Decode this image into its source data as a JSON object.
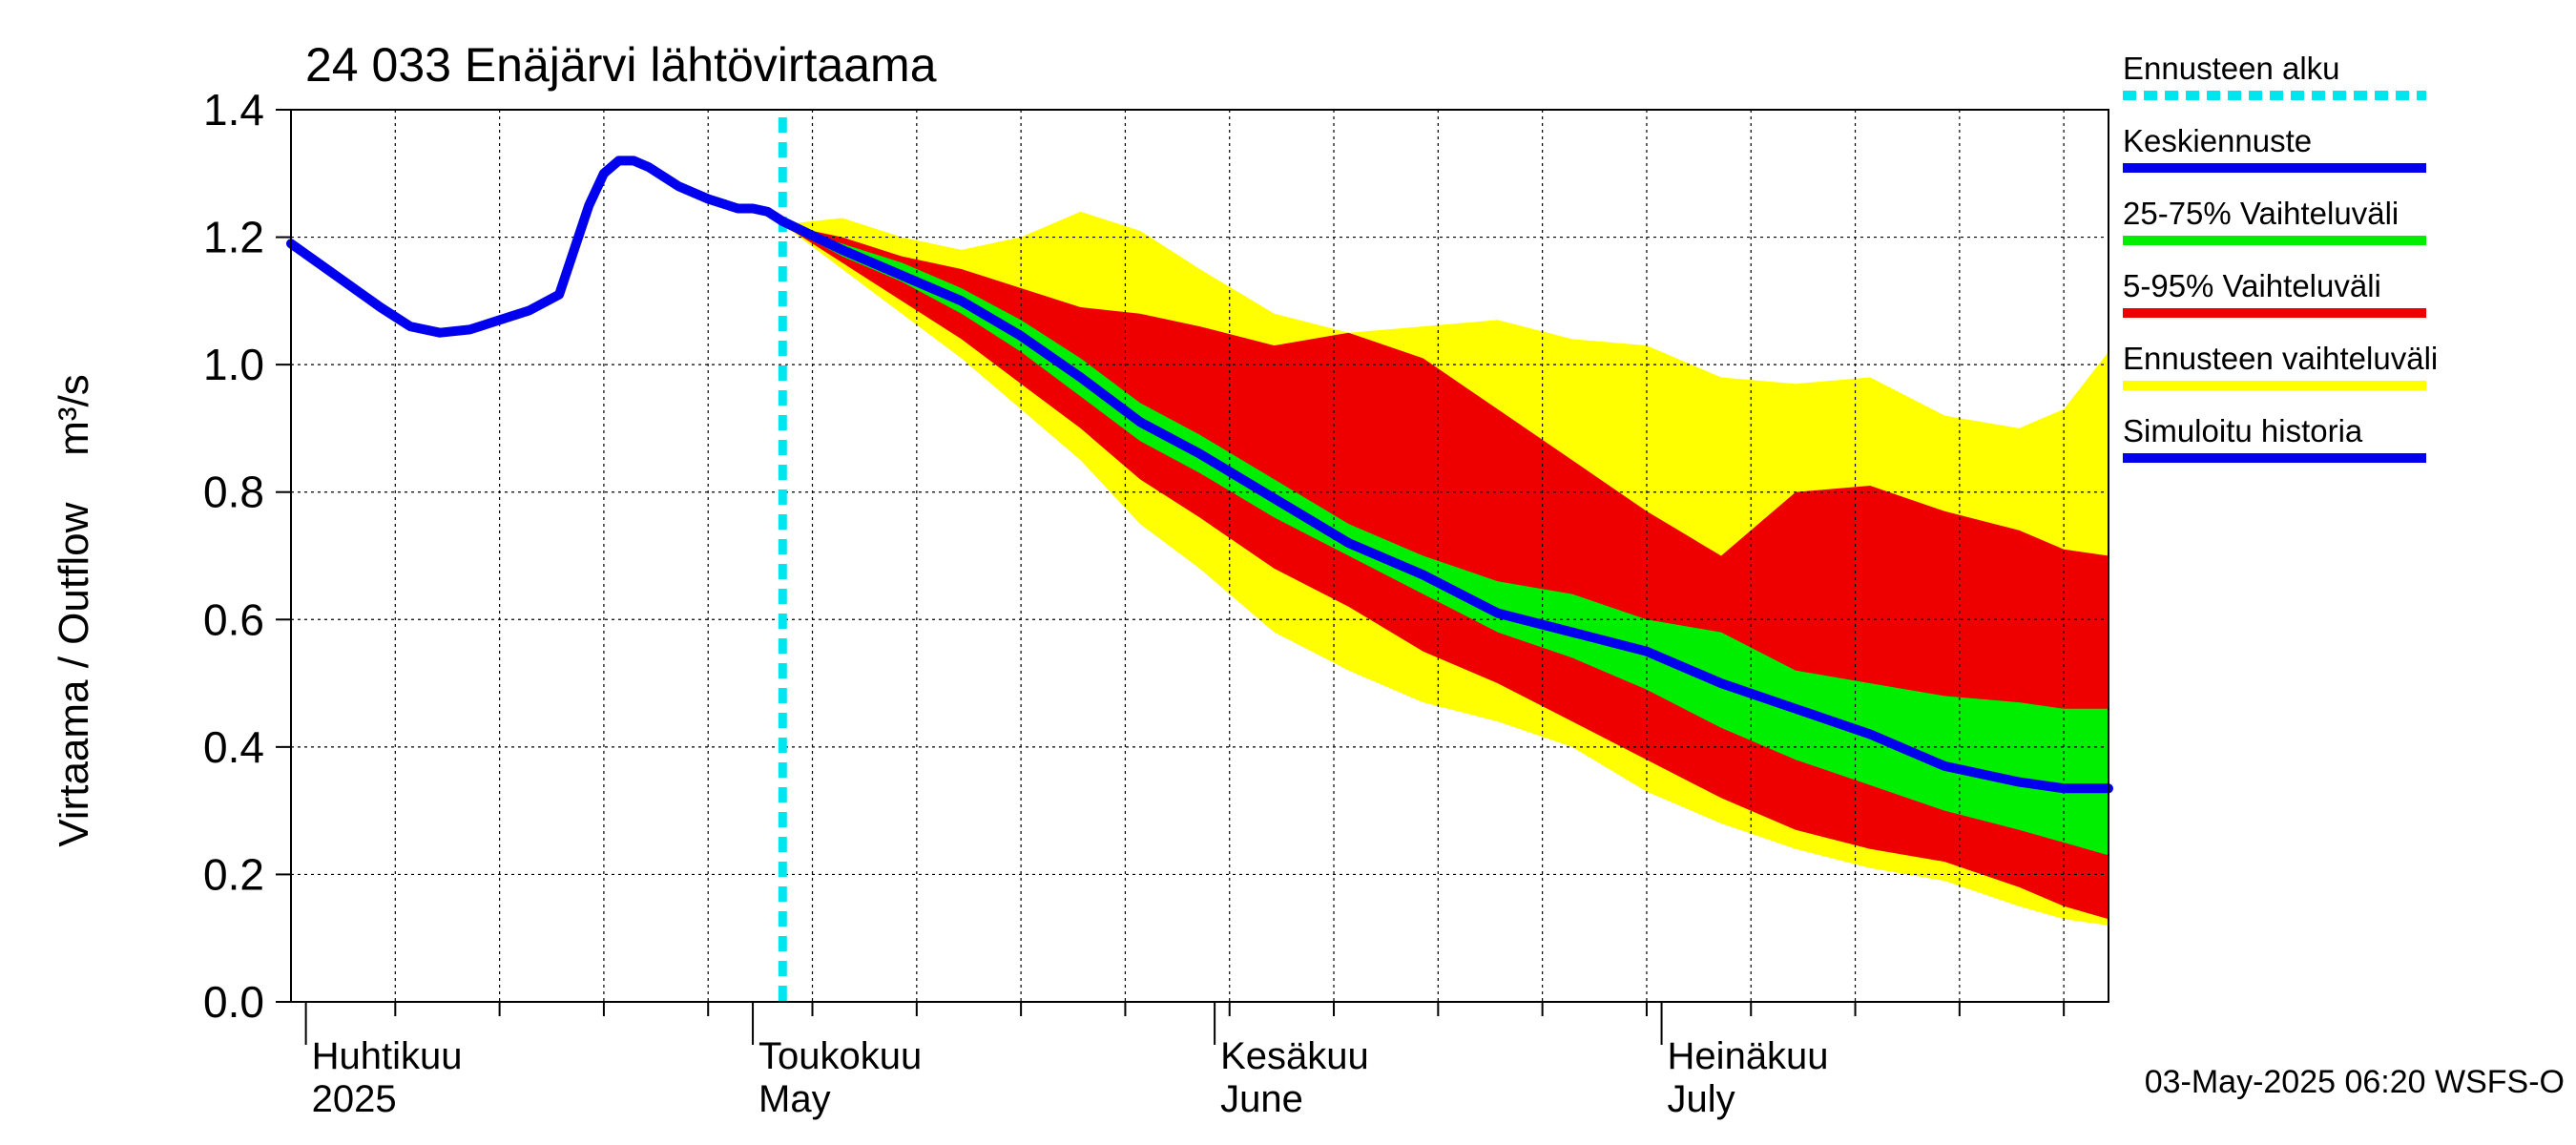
{
  "chart_data": {
    "type": "area",
    "title": "24 033 Enäjärvi lähtövirtaama",
    "ylabel": "Virtaama / Outflow    m³/s",
    "ylim": [
      0,
      1.4
    ],
    "xlim": [
      "2025-03-31",
      "2025-07-31"
    ],
    "yticks": [
      "0.0",
      "0.2",
      "0.4",
      "0.6",
      "0.8",
      "1.0",
      "1.2",
      "1.4"
    ],
    "month_labels": [
      {
        "date": "2025-04-01",
        "fi": "Huhtikuu",
        "en": "2025"
      },
      {
        "date": "2025-05-01",
        "fi": "Toukokuu",
        "en": "May"
      },
      {
        "date": "2025-06-01",
        "fi": "Kesäkuu",
        "en": "June"
      },
      {
        "date": "2025-07-01",
        "fi": "Heinäkuu",
        "en": "July"
      }
    ],
    "forecast_start": "2025-05-03",
    "footer": "03-May-2025 06:20 WSFS-O",
    "legend": [
      {
        "label": "Ennusteen alku",
        "color": "#00e5ee",
        "style": "dashed"
      },
      {
        "label": "Keskiennuste",
        "color": "#0000ee",
        "style": "solid"
      },
      {
        "label": "25-75% Vaihteluväli",
        "color": "#00ee00",
        "style": "solid"
      },
      {
        "label": "5-95% Vaihteluväli",
        "color": "#ee0000",
        "style": "solid"
      },
      {
        "label": "Ennusteen vaihteluväli",
        "color": "#ffff00",
        "style": "solid"
      },
      {
        "label": "Simuloitu historia",
        "color": "#0000ee",
        "style": "solid"
      }
    ],
    "history": {
      "x": [
        "2025-03-31",
        "2025-04-03",
        "2025-04-06",
        "2025-04-08",
        "2025-04-10",
        "2025-04-12",
        "2025-04-14",
        "2025-04-16",
        "2025-04-18",
        "2025-04-19",
        "2025-04-20",
        "2025-04-21",
        "2025-04-22",
        "2025-04-23",
        "2025-04-24",
        "2025-04-25",
        "2025-04-26",
        "2025-04-28",
        "2025-04-30",
        "2025-05-01",
        "2025-05-02",
        "2025-05-03"
      ],
      "y": [
        1.19,
        1.14,
        1.09,
        1.06,
        1.05,
        1.055,
        1.07,
        1.085,
        1.11,
        1.18,
        1.25,
        1.3,
        1.32,
        1.32,
        1.31,
        1.295,
        1.28,
        1.26,
        1.245,
        1.245,
        1.24,
        1.225
      ]
    },
    "series": [
      {
        "name": "Ennusteen vaihteluväli",
        "color": "#ffff00",
        "x": [
          "2025-05-03",
          "2025-05-07",
          "2025-05-11",
          "2025-05-15",
          "2025-05-19",
          "2025-05-23",
          "2025-05-27",
          "2025-05-31",
          "2025-06-05",
          "2025-06-10",
          "2025-06-15",
          "2025-06-20",
          "2025-06-25",
          "2025-06-30",
          "2025-07-05",
          "2025-07-10",
          "2025-07-15",
          "2025-07-20",
          "2025-07-25",
          "2025-07-28",
          "2025-07-31"
        ],
        "upper": [
          1.22,
          1.23,
          1.2,
          1.18,
          1.2,
          1.24,
          1.21,
          1.15,
          1.08,
          1.05,
          1.06,
          1.07,
          1.04,
          1.03,
          0.98,
          0.97,
          0.98,
          0.92,
          0.9,
          0.93,
          1.02
        ],
        "lower": [
          1.22,
          1.15,
          1.08,
          1.01,
          0.93,
          0.85,
          0.75,
          0.68,
          0.58,
          0.52,
          0.47,
          0.44,
          0.4,
          0.33,
          0.28,
          0.24,
          0.21,
          0.19,
          0.15,
          0.13,
          0.12
        ]
      },
      {
        "name": "5-95% Vaihteluväli",
        "color": "#ee0000",
        "x": [
          "2025-05-03",
          "2025-05-07",
          "2025-05-11",
          "2025-05-15",
          "2025-05-19",
          "2025-05-23",
          "2025-05-27",
          "2025-05-31",
          "2025-06-05",
          "2025-06-10",
          "2025-06-15",
          "2025-06-20",
          "2025-06-25",
          "2025-06-30",
          "2025-07-05",
          "2025-07-10",
          "2025-07-15",
          "2025-07-20",
          "2025-07-25",
          "2025-07-28",
          "2025-07-31"
        ],
        "upper": [
          1.22,
          1.2,
          1.17,
          1.15,
          1.12,
          1.09,
          1.08,
          1.06,
          1.03,
          1.05,
          1.01,
          0.93,
          0.85,
          0.77,
          0.7,
          0.8,
          0.81,
          0.77,
          0.74,
          0.71,
          0.7
        ],
        "lower": [
          1.22,
          1.16,
          1.1,
          1.04,
          0.97,
          0.9,
          0.82,
          0.76,
          0.68,
          0.62,
          0.55,
          0.5,
          0.44,
          0.38,
          0.32,
          0.27,
          0.24,
          0.22,
          0.18,
          0.15,
          0.13
        ]
      },
      {
        "name": "25-75% Vaihteluväli",
        "color": "#00ee00",
        "x": [
          "2025-05-03",
          "2025-05-07",
          "2025-05-11",
          "2025-05-15",
          "2025-05-19",
          "2025-05-23",
          "2025-05-27",
          "2025-05-31",
          "2025-06-05",
          "2025-06-10",
          "2025-06-15",
          "2025-06-20",
          "2025-06-25",
          "2025-06-30",
          "2025-07-05",
          "2025-07-10",
          "2025-07-15",
          "2025-07-20",
          "2025-07-25",
          "2025-07-28",
          "2025-07-31"
        ],
        "upper": [
          1.22,
          1.19,
          1.16,
          1.12,
          1.07,
          1.01,
          0.94,
          0.89,
          0.82,
          0.75,
          0.7,
          0.66,
          0.64,
          0.6,
          0.58,
          0.52,
          0.5,
          0.48,
          0.47,
          0.46,
          0.46
        ],
        "lower": [
          1.22,
          1.17,
          1.13,
          1.08,
          1.02,
          0.95,
          0.88,
          0.83,
          0.76,
          0.7,
          0.64,
          0.58,
          0.54,
          0.49,
          0.43,
          0.38,
          0.34,
          0.3,
          0.27,
          0.25,
          0.23
        ]
      },
      {
        "name": "Keskiennuste",
        "color": "#0000ee",
        "x": [
          "2025-05-03",
          "2025-05-07",
          "2025-05-11",
          "2025-05-15",
          "2025-05-19",
          "2025-05-23",
          "2025-05-27",
          "2025-05-31",
          "2025-06-05",
          "2025-06-10",
          "2025-06-15",
          "2025-06-20",
          "2025-06-25",
          "2025-06-30",
          "2025-07-05",
          "2025-07-10",
          "2025-07-15",
          "2025-07-20",
          "2025-07-25",
          "2025-07-28",
          "2025-07-31"
        ],
        "values": [
          1.225,
          1.18,
          1.14,
          1.1,
          1.045,
          0.98,
          0.91,
          0.86,
          0.79,
          0.72,
          0.67,
          0.61,
          0.58,
          0.55,
          0.5,
          0.46,
          0.42,
          0.37,
          0.345,
          0.335,
          0.335
        ]
      }
    ]
  }
}
